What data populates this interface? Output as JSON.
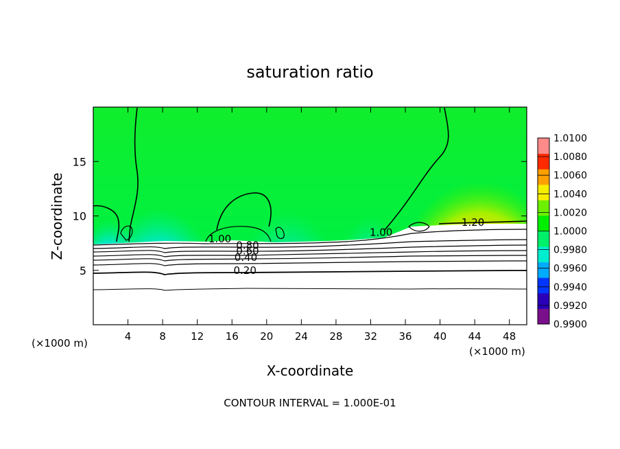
{
  "chart_data": {
    "type": "heatmap",
    "title": "saturation ratio",
    "xlabel": "X-coordinate",
    "ylabel": "Z-coordinate",
    "x_unit_left": "(×1000 m)",
    "x_unit_right": "(×1000 m)",
    "xlim": [
      0,
      50
    ],
    "ylim": [
      0,
      20
    ],
    "x_ticks": [
      4,
      8,
      12,
      16,
      20,
      24,
      28,
      32,
      36,
      40,
      44,
      48
    ],
    "y_ticks": [
      5,
      10,
      15
    ],
    "colorbar": {
      "levels": [
        "1.0100",
        "1.0080",
        "1.0060",
        "1.0040",
        "1.0020",
        "1.0000",
        "0.9980",
        "0.9960",
        "0.9940",
        "0.9920",
        "0.9900"
      ],
      "colors": [
        "#7a0f8c",
        "#2a00b8",
        "#0036ff",
        "#00aaff",
        "#00eed0",
        "#00f06a",
        "#00ee00",
        "#6cf000",
        "#f6ee00",
        "#ffa000",
        "#ff2a00",
        "#ff8a8a"
      ]
    },
    "contour_labels": [
      {
        "text": "1.20",
        "x": 43.8,
        "z": 9.2
      },
      {
        "text": "1.00",
        "x": 33.2,
        "z": 8.3
      },
      {
        "text": "1.00",
        "x": 14.6,
        "z": 7.7
      },
      {
        "text": "0.80",
        "x": 17.8,
        "z": 7.1
      },
      {
        "text": "0.60",
        "x": 17.8,
        "z": 6.6
      },
      {
        "text": "0.40",
        "x": 17.6,
        "z": 6.0
      },
      {
        "text": "0.20",
        "x": 17.5,
        "z": 4.8
      }
    ],
    "contour_interval_text": "CONTOUR INTERVAL = 1.000E-01"
  }
}
